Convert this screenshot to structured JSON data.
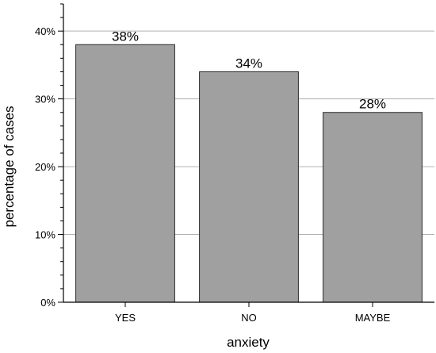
{
  "chart_data": {
    "type": "bar",
    "categories": [
      "YES",
      "NO",
      "MAYBE"
    ],
    "values": [
      38,
      34,
      28
    ],
    "data_labels": [
      "38%",
      "34%",
      "28%"
    ],
    "xlabel": "anxiety",
    "ylabel": "percentage of cases",
    "ylim": [
      0,
      44
    ],
    "yticks": [
      0,
      10,
      20,
      30,
      40
    ],
    "ytick_labels": [
      "0%",
      "10%",
      "20%",
      "30%",
      "40%"
    ],
    "grid": true,
    "bar_color": "#a0a0a0",
    "bar_edge_color": "#2a2a2a",
    "grid_color": "#b0b0b0"
  }
}
